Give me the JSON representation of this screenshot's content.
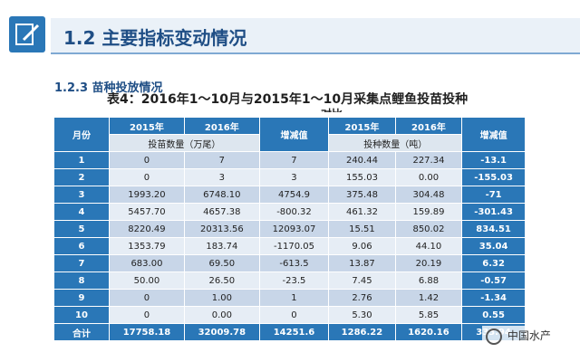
{
  "header": {
    "title": "1.2 主要指标变动情况"
  },
  "subsection": "1.2.3 苗种投放情况",
  "caption": {
    "main": "表4：2016年1～10月与2015年1～10月采集点鲤鱼投苗投种",
    "tail": "对比"
  },
  "table": {
    "col_month": "月份",
    "col_2015a": "2015年",
    "col_2016a": "2016年",
    "col_change_a": "增减值",
    "col_2015b": "2015年",
    "col_2016b": "2016年",
    "col_change_b": "增减值",
    "sub_a": "投苗数量（万尾）",
    "sub_b": "投种数量（吨）",
    "rows": [
      {
        "m": "1",
        "a15": "0",
        "a16": "7",
        "ad": "7",
        "b15": "240.44",
        "b16": "227.34",
        "bd": "-13.1"
      },
      {
        "m": "2",
        "a15": "0",
        "a16": "3",
        "ad": "3",
        "b15": "155.03",
        "b16": "0.00",
        "bd": "-155.03"
      },
      {
        "m": "3",
        "a15": "1993.20",
        "a16": "6748.10",
        "ad": "4754.9",
        "b15": "375.48",
        "b16": "304.48",
        "bd": "-71"
      },
      {
        "m": "4",
        "a15": "5457.70",
        "a16": "4657.38",
        "ad": "-800.32",
        "b15": "461.32",
        "b16": "159.89",
        "bd": "-301.43"
      },
      {
        "m": "5",
        "a15": "8220.49",
        "a16": "20313.56",
        "ad": "12093.07",
        "b15": "15.51",
        "b16": "850.02",
        "bd": "834.51"
      },
      {
        "m": "6",
        "a15": "1353.79",
        "a16": "183.74",
        "ad": "-1170.05",
        "b15": "9.06",
        "b16": "44.10",
        "bd": "35.04"
      },
      {
        "m": "7",
        "a15": "683.00",
        "a16": "69.50",
        "ad": "-613.5",
        "b15": "13.87",
        "b16": "20.19",
        "bd": "6.32"
      },
      {
        "m": "8",
        "a15": "50.00",
        "a16": "26.50",
        "ad": "-23.5",
        "b15": "7.45",
        "b16": "6.88",
        "bd": "-0.57"
      },
      {
        "m": "9",
        "a15": "0",
        "a16": "1.00",
        "ad": "1",
        "b15": "2.76",
        "b16": "1.42",
        "bd": "-1.34"
      },
      {
        "m": "10",
        "a15": "0",
        "a16": "0.00",
        "ad": "0",
        "b15": "5.30",
        "b16": "5.85",
        "bd": "0.55"
      }
    ],
    "total": {
      "m": "合计",
      "a15": "17758.18",
      "a16": "32009.78",
      "ad": "14251.6",
      "b15": "1286.22",
      "b16": "1620.16",
      "bd": "333.94"
    }
  },
  "watermark": "中国水产",
  "colors": {
    "header_blue": "#2a77b7",
    "row_light": "#c8d6e8",
    "row_lighter": "#e6edf5"
  }
}
